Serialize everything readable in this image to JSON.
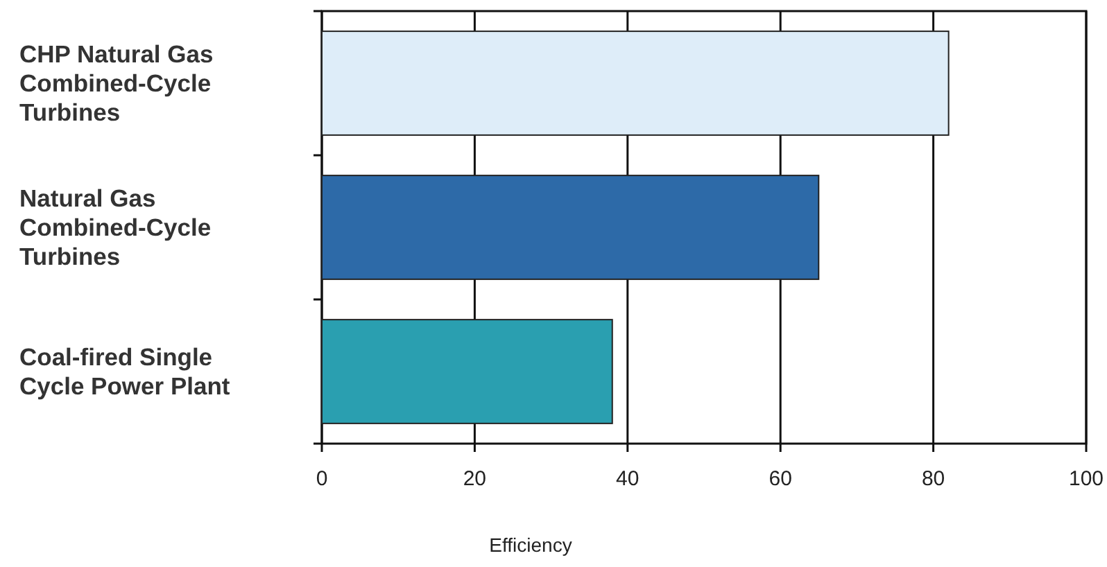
{
  "chart_data": {
    "type": "bar",
    "orientation": "horizontal",
    "xlabel": "Efficiency",
    "categories": [
      "CHP Natural Gas Combined-Cycle Turbines",
      "Natural Gas Combined-Cycle Turbines",
      "Coal-fired Single Cycle Power Plant"
    ],
    "values": [
      82,
      65,
      38
    ],
    "colors": [
      "#deedf9",
      "#2d6aa8",
      "#2a9fb0"
    ],
    "xlim": [
      0,
      100
    ],
    "xticks": [
      0,
      20,
      40,
      60,
      80,
      100
    ],
    "grid": "x"
  }
}
